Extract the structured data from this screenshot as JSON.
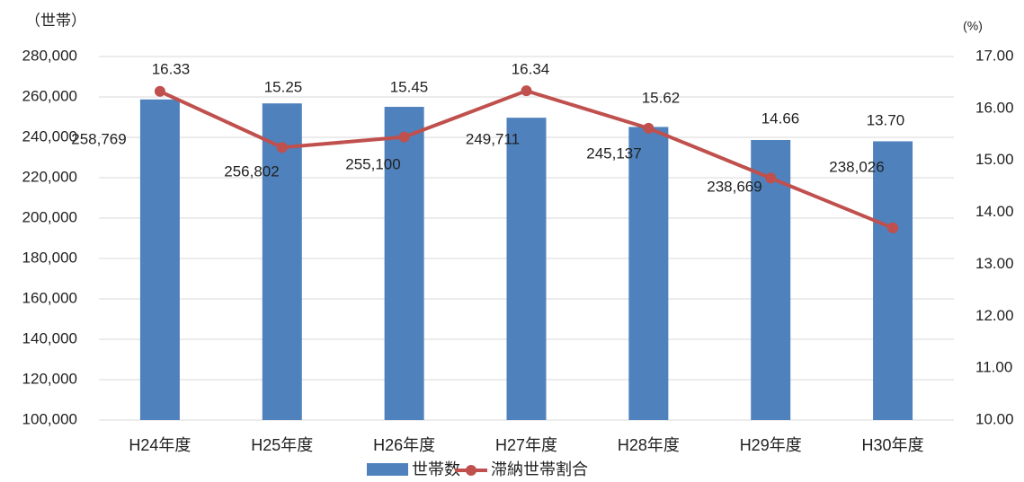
{
  "chart_data": {
    "type": "bar-line",
    "y_label": "（世帯）",
    "y2_label": "(%)",
    "categories": [
      "H24年度",
      "H25年度",
      "H26年度",
      "H27年度",
      "H28年度",
      "H29年度",
      "H30年度"
    ],
    "series": [
      {
        "name": "世帯数",
        "type": "bar",
        "color": "#4f81bd",
        "values": [
          258769,
          256802,
          255100,
          249711,
          245137,
          238669,
          238026
        ],
        "value_labels": [
          "258,769",
          "256,802",
          "255,100",
          "249,711",
          "245,137",
          "238,669",
          "238,026"
        ]
      },
      {
        "name": "滞納世帯割合",
        "type": "line",
        "axis": "y2",
        "color": "#c0504d",
        "values": [
          16.33,
          15.25,
          15.45,
          16.34,
          15.62,
          14.66,
          13.7
        ],
        "value_labels": [
          "16.33",
          "15.25",
          "15.45",
          "16.34",
          "15.62",
          "14.66",
          "13.70"
        ]
      }
    ],
    "ylim": [
      100000,
      280000
    ],
    "yticks": [
      {
        "value": 100000,
        "label": "100,000"
      },
      {
        "value": 120000,
        "label": "120,000"
      },
      {
        "value": 140000,
        "label": "140,000"
      },
      {
        "value": 160000,
        "label": "160,000"
      },
      {
        "value": 180000,
        "label": "180,000"
      },
      {
        "value": 200000,
        "label": "200,000"
      },
      {
        "value": 220000,
        "label": "220,000"
      },
      {
        "value": 240000,
        "label": "240,000"
      },
      {
        "value": 260000,
        "label": "260,000"
      },
      {
        "value": 280000,
        "label": "280,000"
      }
    ],
    "y2lim": [
      10,
      17
    ],
    "y2ticks": [
      {
        "value": 10,
        "label": "10.00"
      },
      {
        "value": 11,
        "label": "11.00"
      },
      {
        "value": 12,
        "label": "12.00"
      },
      {
        "value": 13,
        "label": "13.00"
      },
      {
        "value": 14,
        "label": "14.00"
      },
      {
        "value": 15,
        "label": "15.00"
      },
      {
        "value": 16,
        "label": "16.00"
      },
      {
        "value": 17,
        "label": "17.00"
      }
    ],
    "grid": true,
    "legend": "bottom"
  }
}
